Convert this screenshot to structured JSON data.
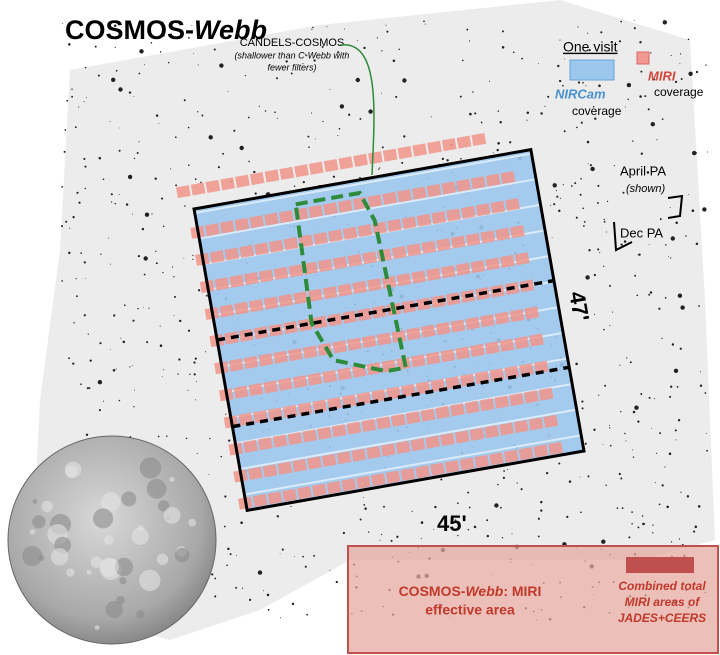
{
  "title": {
    "main": "COSMOS-",
    "italic": "Webb"
  },
  "candels": {
    "label": "CANDELS-COSMOS",
    "note": [
      "(shallower than C-Webb with",
      "fewer filters)"
    ]
  },
  "legend": {
    "heading": "One visit",
    "nircam": "NIRCam",
    "nircam_sub": "coverage",
    "miri": "MIRI",
    "miri_sub": "coverage"
  },
  "orientation": {
    "april": "April PA",
    "shown": "(shown)",
    "dec": "Dec PA"
  },
  "dimensions": {
    "height": "47'",
    "width": "45'"
  },
  "comparison": {
    "cosmos": [
      "COSMOS-",
      "Webb",
      ": MIRI",
      "effective area"
    ],
    "combined": [
      "Combined total",
      "MIRI areas of",
      "JADES+CEERS"
    ]
  }
}
